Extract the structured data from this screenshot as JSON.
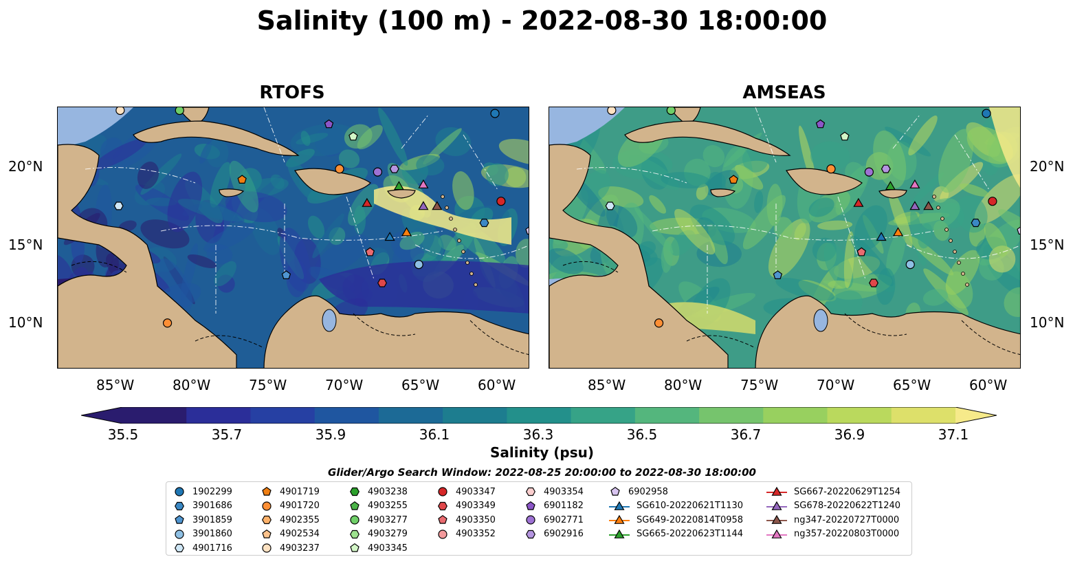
{
  "title": "Salinity (100 m) - 2022-08-30 18:00:00",
  "panels": [
    {
      "title": "RTOFS"
    },
    {
      "title": "AMSEAS"
    }
  ],
  "axes": {
    "x_ticks": [
      "85°W",
      "80°W",
      "75°W",
      "70°W",
      "65°W",
      "60°W"
    ],
    "y_ticks": [
      "20°N",
      "15°N",
      "10°N"
    ]
  },
  "colorbar": {
    "label": "Salinity (psu)",
    "ticks": [
      "35.5",
      "35.7",
      "35.9",
      "36.1",
      "36.3",
      "36.5",
      "36.7",
      "36.9",
      "37.1"
    ],
    "colors": [
      "#2a1c6e",
      "#2b2e99",
      "#2640a3",
      "#1f56a0",
      "#1c6a96",
      "#1d7d8f",
      "#23908b",
      "#36a387",
      "#54b67d",
      "#76c46d",
      "#98d05f",
      "#bad95d",
      "#dde06a",
      "#f6ea8a"
    ]
  },
  "legend": {
    "title": "Glider/Argo Search Window: 2022-08-25 20:00:00 to 2022-08-30 18:00:00",
    "columns": [
      [
        {
          "label": "1902299",
          "marker": "circle",
          "color": "#1f77b4"
        },
        {
          "label": "3901686",
          "marker": "hexagon",
          "color": "#3b88c4"
        },
        {
          "label": "3901859",
          "marker": "pentagon",
          "color": "#4f95d0"
        },
        {
          "label": "3901860",
          "marker": "circle",
          "color": "#8fc0e4"
        },
        {
          "label": "4901716",
          "marker": "hexagon",
          "color": "#cfe7f6"
        }
      ],
      [
        {
          "label": "4901719",
          "marker": "pentagon",
          "color": "#f07f12"
        },
        {
          "label": "4901720",
          "marker": "circle",
          "color": "#fd8f35"
        },
        {
          "label": "4902355",
          "marker": "hexagon",
          "color": "#fdb26b"
        },
        {
          "label": "4902534",
          "marker": "pentagon",
          "color": "#fdc38c"
        },
        {
          "label": "4903237",
          "marker": "circle",
          "color": "#fee2c2"
        }
      ],
      [
        {
          "label": "4903238",
          "marker": "hexagon",
          "color": "#2ca02c"
        },
        {
          "label": "4903255",
          "marker": "pentagon",
          "color": "#4bb448"
        },
        {
          "label": "4903277",
          "marker": "circle",
          "color": "#6fcf68"
        },
        {
          "label": "4903279",
          "marker": "hexagon",
          "color": "#9ee28f"
        },
        {
          "label": "4903345",
          "marker": "pentagon",
          "color": "#d3f6c7"
        }
      ],
      [
        {
          "label": "4903347",
          "marker": "circle",
          "color": "#d62728"
        },
        {
          "label": "4903349",
          "marker": "hexagon",
          "color": "#e0474a"
        },
        {
          "label": "4903350",
          "marker": "pentagon",
          "color": "#ea6b70"
        },
        {
          "label": "4903352",
          "marker": "circle",
          "color": "#f39a9c"
        }
      ],
      [
        {
          "label": "4903354",
          "marker": "hexagon",
          "color": "#fbcfcf"
        },
        {
          "label": "6901182",
          "marker": "pentagon",
          "color": "#8c56c8"
        },
        {
          "label": "6902771",
          "marker": "circle",
          "color": "#9e72d4"
        },
        {
          "label": "6902916",
          "marker": "hexagon",
          "color": "#b595e0"
        }
      ],
      [
        {
          "label": "6902958",
          "marker": "pentagon",
          "color": "#d8c4f0"
        },
        {
          "label": "SG610-20220621T1130",
          "marker": "triangle",
          "color": "#1f77b4"
        },
        {
          "label": "SG649-20220814T0958",
          "marker": "triangle",
          "color": "#ff7f0e"
        },
        {
          "label": "SG665-20220623T1144",
          "marker": "triangle",
          "color": "#2ca02c"
        }
      ],
      [
        {
          "label": "SG667-20220629T1254",
          "marker": "triangle",
          "color": "#d62728"
        },
        {
          "label": "SG678-20220622T1240",
          "marker": "triangle",
          "color": "#9467bd"
        },
        {
          "label": "ng347-20220727T0000",
          "marker": "triangle",
          "color": "#8c564b"
        },
        {
          "label": "ng357-20220803T0000",
          "marker": "triangle",
          "color": "#e377c2"
        }
      ]
    ]
  },
  "map_colors": {
    "land": "#d2b48c",
    "ocean_outside": "#97b6e0",
    "rtofs_base": "#1f5d96",
    "amseas_base": "#3e9c87"
  },
  "markers": [
    {
      "lon": -84.9,
      "lat": 23.8,
      "marker": "circle",
      "color": "#fee2c2"
    },
    {
      "lon": -81.0,
      "lat": 23.8,
      "marker": "circle",
      "color": "#6fcf68"
    },
    {
      "lon": -71.2,
      "lat": 22.9,
      "marker": "pentagon",
      "color": "#8c56c8"
    },
    {
      "lon": -69.6,
      "lat": 22.1,
      "marker": "pentagon",
      "color": "#d3f6c7"
    },
    {
      "lon": -60.3,
      "lat": 23.6,
      "marker": "circle",
      "color": "#1f77b4"
    },
    {
      "lon": -70.5,
      "lat": 20.0,
      "marker": "circle",
      "color": "#fd8f35"
    },
    {
      "lon": -76.9,
      "lat": 19.3,
      "marker": "pentagon",
      "color": "#f07f12"
    },
    {
      "lon": -68.0,
      "lat": 19.8,
      "marker": "circle",
      "color": "#9e72d4"
    },
    {
      "lon": -66.9,
      "lat": 20.0,
      "marker": "hexagon",
      "color": "#b595e0"
    },
    {
      "lon": -66.6,
      "lat": 18.9,
      "marker": "triangle",
      "color": "#2ca02c"
    },
    {
      "lon": -65.0,
      "lat": 19.0,
      "marker": "triangle",
      "color": "#e377c2"
    },
    {
      "lon": -68.7,
      "lat": 17.8,
      "marker": "triangle",
      "color": "#d62728"
    },
    {
      "lon": -65.0,
      "lat": 17.6,
      "marker": "triangle",
      "color": "#9467bd"
    },
    {
      "lon": -64.1,
      "lat": 17.6,
      "marker": "triangle",
      "color": "#8c564b"
    },
    {
      "lon": -85.0,
      "lat": 17.6,
      "marker": "hexagon",
      "color": "#cfe7f6"
    },
    {
      "lon": -59.9,
      "lat": 17.9,
      "marker": "circle",
      "color": "#d62728"
    },
    {
      "lon": -61.0,
      "lat": 16.5,
      "marker": "hexagon",
      "color": "#3b88c4"
    },
    {
      "lon": -58.0,
      "lat": 16.0,
      "marker": "pentagon",
      "color": "#d8c4f0"
    },
    {
      "lon": -67.2,
      "lat": 15.6,
      "marker": "triangle",
      "color": "#1f77b4"
    },
    {
      "lon": -66.1,
      "lat": 15.9,
      "marker": "triangle",
      "color": "#ff7f0e"
    },
    {
      "lon": -68.5,
      "lat": 14.6,
      "marker": "pentagon",
      "color": "#ea6b70"
    },
    {
      "lon": -65.3,
      "lat": 13.8,
      "marker": "circle",
      "color": "#8fc0e4"
    },
    {
      "lon": -74.0,
      "lat": 13.1,
      "marker": "pentagon",
      "color": "#4f95d0"
    },
    {
      "lon": -67.7,
      "lat": 12.6,
      "marker": "hexagon",
      "color": "#e0474a"
    },
    {
      "lon": -81.8,
      "lat": 10.0,
      "marker": "circle",
      "color": "#fd8f35"
    }
  ]
}
